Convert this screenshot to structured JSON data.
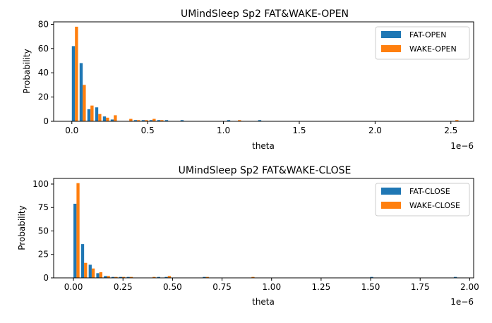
{
  "colors": {
    "fat": "#1f77b4",
    "wake": "#ff7f0e",
    "axis": "#000000",
    "background": "#ffffff"
  },
  "chart_data": [
    {
      "type": "bar",
      "title": "UMindSleep Sp2 FAT&WAKE-OPEN",
      "xlabel": "theta",
      "ylabel": "Probability",
      "offset_text": "1e−6",
      "xlim": [
        -0.12,
        2.65
      ],
      "ylim": [
        0,
        82
      ],
      "xticks": [
        0.0,
        0.5,
        1.0,
        1.5,
        2.0,
        2.5
      ],
      "xtick_labels": [
        "0.0",
        "0.5",
        "1.0",
        "1.5",
        "2.0",
        "2.5"
      ],
      "yticks": [
        0,
        20,
        40,
        60,
        80
      ],
      "ytick_labels": [
        "0",
        "20",
        "40",
        "60",
        "80"
      ],
      "bin_width": 0.0512,
      "grid": false,
      "legend_position": "top-right",
      "series": [
        {
          "name": "FAT-OPEN",
          "color": "#1f77b4",
          "x": [
            0.0,
            0.0512,
            0.1024,
            0.1536,
            0.2048,
            0.256,
            0.4096,
            0.4608,
            0.512,
            0.5632,
            0.6144,
            0.7168,
            1.024,
            1.2288
          ],
          "values": [
            62,
            48,
            10,
            11.5,
            4,
            1.5,
            1,
            1,
            1,
            1,
            1,
            1,
            1,
            1
          ]
        },
        {
          "name": "WAKE-OPEN",
          "color": "#ff7f0e",
          "x": [
            0.0,
            0.0512,
            0.1024,
            0.1536,
            0.2048,
            0.256,
            0.3584,
            0.4096,
            0.4608,
            0.512,
            0.5632,
            1.0752,
            2.5088
          ],
          "values": [
            78,
            30,
            13,
            6,
            3,
            5,
            2,
            1,
            1,
            2,
            1,
            1,
            1
          ]
        }
      ]
    },
    {
      "type": "bar",
      "title": "UMindSleep Sp2 FAT&WAKE-CLOSE",
      "xlabel": "theta",
      "ylabel": "Probability",
      "offset_text": "1e−6",
      "xlim": [
        -0.1,
        2.02
      ],
      "ylim": [
        0,
        106
      ],
      "xticks": [
        0.0,
        0.25,
        0.5,
        0.75,
        1.0,
        1.25,
        1.5,
        1.75,
        2.0
      ],
      "xtick_labels": [
        "0.00",
        "0.25",
        "0.50",
        "0.75",
        "1.00",
        "1.25",
        "1.50",
        "1.75",
        "2.00"
      ],
      "yticks": [
        0,
        25,
        50,
        75,
        100
      ],
      "ytick_labels": [
        "0",
        "25",
        "50",
        "75",
        "100"
      ],
      "bin_width": 0.0384,
      "grid": false,
      "legend_position": "top-right",
      "series": [
        {
          "name": "FAT-CLOSE",
          "color": "#1f77b4",
          "x": [
            0.0,
            0.0384,
            0.0768,
            0.1152,
            0.1536,
            0.192,
            0.2304,
            0.2688,
            0.4224,
            0.4608,
            0.6528,
            1.4976,
            1.92
          ],
          "values": [
            79,
            36,
            14,
            5,
            2,
            1,
            1,
            1,
            1,
            1,
            1,
            1,
            1
          ]
        },
        {
          "name": "WAKE-CLOSE",
          "color": "#ff7f0e",
          "x": [
            0.0,
            0.0384,
            0.0768,
            0.1152,
            0.1536,
            0.192,
            0.2304,
            0.2688,
            0.384,
            0.4608,
            0.6528,
            0.8832
          ],
          "values": [
            101,
            16,
            10,
            6,
            2,
            1,
            1,
            1,
            1,
            2,
            1,
            1
          ]
        }
      ]
    }
  ]
}
